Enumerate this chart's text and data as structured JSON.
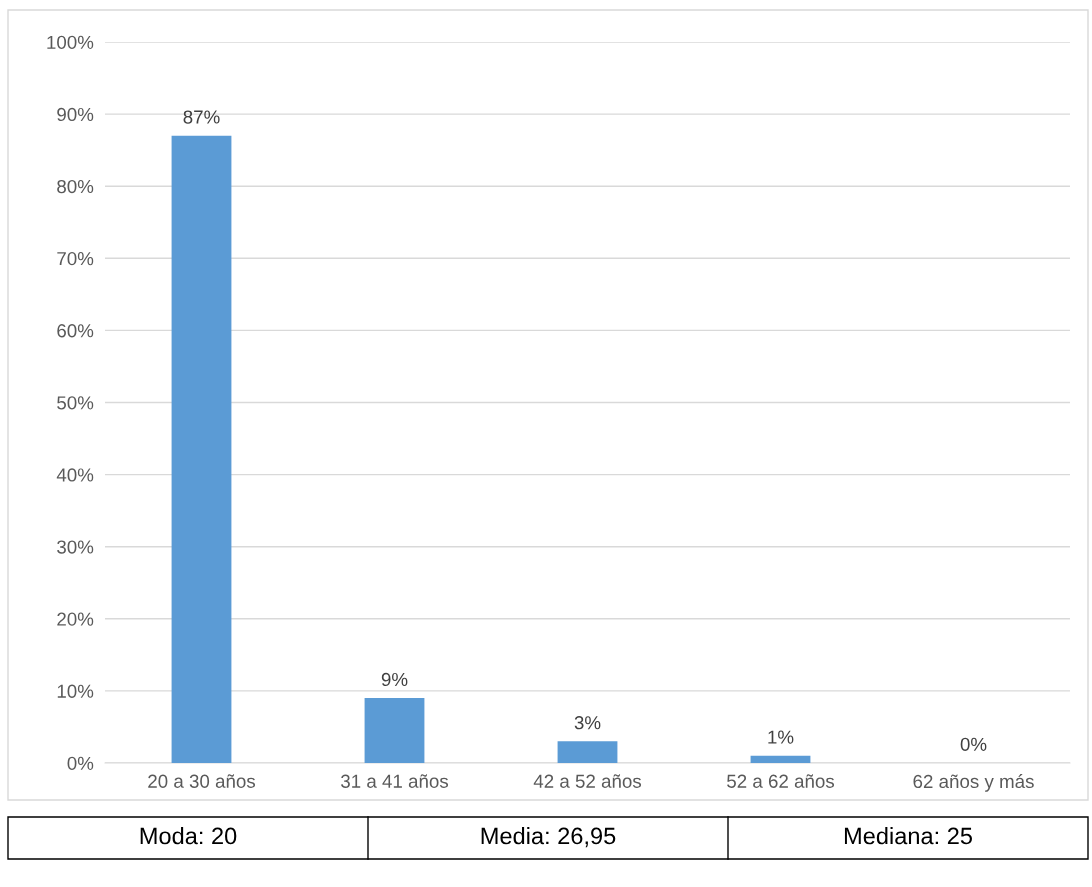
{
  "chart_data": {
    "type": "bar",
    "categories": [
      "20 a 30 años",
      "31 a 41 años",
      "42 a 52 años",
      "52 a 62 años",
      "62 años y más"
    ],
    "values": [
      87,
      9,
      3,
      1,
      0
    ],
    "value_labels": [
      "87%",
      "9%",
      "3%",
      "1%",
      "0%"
    ],
    "color": "#5b9bd5",
    "ylim": [
      0,
      100
    ],
    "yticks": [
      {
        "value": 0,
        "label": "0%"
      },
      {
        "value": 10,
        "label": "10%"
      },
      {
        "value": 20,
        "label": "20%"
      },
      {
        "value": 30,
        "label": "30%"
      },
      {
        "value": 40,
        "label": "40%"
      },
      {
        "value": 50,
        "label": "50%"
      },
      {
        "value": 60,
        "label": "60%"
      },
      {
        "value": 70,
        "label": "70%"
      },
      {
        "value": 80,
        "label": "80%"
      },
      {
        "value": 90,
        "label": "90%"
      },
      {
        "value": 100,
        "label": "100%"
      }
    ],
    "grid": "y",
    "legend": false,
    "annotations": [
      "Moda: 20",
      "Media: 26,95",
      "Mediana: 25"
    ]
  }
}
